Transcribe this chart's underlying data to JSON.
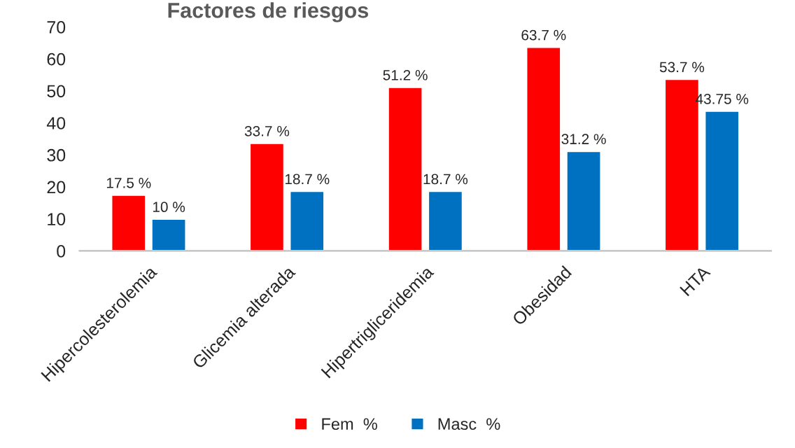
{
  "chart_data": {
    "type": "bar",
    "title": "Factores de riesgos",
    "categories": [
      "Hipercolesterolemia",
      "Glicemia alterada",
      "Hipertrigliceridemia",
      "Obesidad",
      "HTA"
    ],
    "series": [
      {
        "name": "Fem  %",
        "color": "#ff0000",
        "values": [
          17.5,
          33.7,
          51.2,
          63.7,
          53.7
        ],
        "value_labels": [
          "17.5 %",
          "33.7 %",
          "51.2 %",
          "63.7 %",
          "53.7 %"
        ]
      },
      {
        "name": "Masc  %",
        "color": "#0070c0",
        "values": [
          10,
          18.7,
          18.7,
          31.2,
          43.75
        ],
        "value_labels": [
          "10 %",
          "18.7 %",
          "18.7 %",
          "31.2 %",
          "43.75 %"
        ]
      }
    ],
    "ylim": [
      0,
      70
    ],
    "yticks": [
      0,
      10,
      20,
      30,
      40,
      50,
      60,
      70
    ],
    "grid": false,
    "legend": "bottom"
  }
}
